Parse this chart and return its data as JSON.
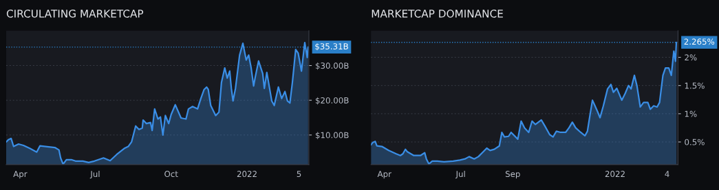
{
  "chart_data": [
    {
      "type": "area",
      "title": "CIRCULATING MARKETCAP",
      "color": "#3a8ee6",
      "grid": "y",
      "x": [
        "2021-03-15",
        "2021-03-18",
        "2021-03-21",
        "2021-03-24",
        "2021-03-30",
        "2021-04-05",
        "2021-04-13",
        "2021-04-21",
        "2021-04-25",
        "2021-05-02",
        "2021-05-13",
        "2021-05-18",
        "2021-05-20",
        "2021-05-23",
        "2021-05-27",
        "2021-06-02",
        "2021-06-07",
        "2021-06-16",
        "2021-06-23",
        "2021-06-30",
        "2021-07-11",
        "2021-07-19",
        "2021-07-27",
        "2021-08-05",
        "2021-08-10",
        "2021-08-14",
        "2021-08-19",
        "2021-08-23",
        "2021-08-27",
        "2021-08-28",
        "2021-09-01",
        "2021-09-06",
        "2021-09-08",
        "2021-09-11",
        "2021-09-15",
        "2021-09-18",
        "2021-09-21",
        "2021-09-24",
        "2021-09-28",
        "2021-10-01",
        "2021-10-06",
        "2021-10-13",
        "2021-10-19",
        "2021-10-22",
        "2021-10-27",
        "2021-11-02",
        "2021-11-06",
        "2021-11-10",
        "2021-11-13",
        "2021-11-15",
        "2021-11-18",
        "2021-11-24",
        "2021-11-28",
        "2021-12-01",
        "2021-12-05",
        "2021-12-08",
        "2021-12-11",
        "2021-12-13",
        "2021-12-15",
        "2021-12-18",
        "2021-12-23",
        "2021-12-27",
        "2021-12-31",
        "2022-01-03",
        "2022-01-06",
        "2022-01-09",
        "2022-01-11",
        "2022-01-15",
        "2022-01-20",
        "2022-01-22",
        "2022-01-25",
        "2022-01-31",
        "2022-02-03",
        "2022-02-08",
        "2022-02-12",
        "2022-02-16",
        "2022-02-19",
        "2022-02-22",
        "2022-02-25",
        "2022-03-01",
        "2022-03-04",
        "2022-03-08",
        "2022-03-12",
        "2022-03-15",
        "2022-03-16"
      ],
      "values": [
        8.0,
        8.7,
        9.0,
        6.7,
        7.4,
        7.0,
        6.1,
        5.1,
        6.9,
        6.7,
        6.4,
        5.7,
        3.4,
        1.6,
        2.9,
        2.9,
        2.5,
        2.5,
        2.1,
        2.5,
        3.4,
        2.6,
        4.4,
        6.1,
        6.7,
        8.0,
        12.6,
        11.6,
        12.0,
        14.3,
        13.3,
        13.6,
        11.3,
        17.5,
        14.6,
        15.2,
        10.0,
        15.6,
        13.3,
        15.9,
        18.7,
        14.9,
        14.6,
        17.5,
        18.2,
        17.5,
        20.5,
        23.1,
        23.8,
        23.1,
        18.5,
        15.6,
        16.6,
        25.1,
        29.3,
        26.4,
        28.4,
        23.4,
        19.8,
        23.4,
        33.0,
        36.4,
        31.6,
        33.0,
        29.3,
        24.1,
        26.7,
        31.3,
        27.7,
        23.4,
        28.0,
        19.8,
        18.5,
        23.8,
        20.5,
        22.5,
        19.8,
        19.2,
        25.1,
        34.6,
        33.6,
        28.4,
        36.6,
        32.3,
        35.31
      ],
      "xlim": [
        "2021-03-15",
        "2022-03-17"
      ],
      "xticks": [
        {
          "value": "2021-04-01",
          "label": "Apr"
        },
        {
          "value": "2021-07-01",
          "label": "Jul"
        },
        {
          "value": "2021-10-01",
          "label": "Oct"
        },
        {
          "value": "2022-01-01",
          "label": "2022"
        },
        {
          "value": "2022-03-05",
          "label": "5"
        }
      ],
      "ylim": [
        1.5,
        40
      ],
      "yticks": [
        {
          "value": 10,
          "label": "$10.00B"
        },
        {
          "value": 20,
          "label": "$20.00B"
        },
        {
          "value": 30,
          "label": "$30.00B"
        }
      ],
      "ref_lines": [
        {
          "axis": "y",
          "value": 35.31,
          "label": "$35.31B",
          "color": "#2a7fc8",
          "line_style": "dotted"
        }
      ]
    },
    {
      "type": "area",
      "title": "MARKETCAP DOMINANCE",
      "color": "#3a8ee6",
      "grid": "y",
      "x": [
        "2021-03-16",
        "2021-03-18",
        "2021-03-21",
        "2021-03-23",
        "2021-03-29",
        "2021-04-06",
        "2021-04-15",
        "2021-04-20",
        "2021-04-23",
        "2021-04-26",
        "2021-04-28",
        "2021-05-06",
        "2021-05-14",
        "2021-05-19",
        "2021-05-21",
        "2021-05-24",
        "2021-05-28",
        "2021-06-03",
        "2021-06-11",
        "2021-06-22",
        "2021-06-30",
        "2021-07-06",
        "2021-07-11",
        "2021-07-17",
        "2021-07-22",
        "2021-07-28",
        "2021-08-01",
        "2021-08-05",
        "2021-08-10",
        "2021-08-16",
        "2021-08-19",
        "2021-08-22",
        "2021-08-27",
        "2021-08-30",
        "2021-09-07",
        "2021-09-11",
        "2021-09-15",
        "2021-09-20",
        "2021-09-24",
        "2021-09-28",
        "2021-10-05",
        "2021-10-09",
        "2021-10-15",
        "2021-10-19",
        "2021-10-23",
        "2021-10-28",
        "2021-11-03",
        "2021-11-07",
        "2021-11-11",
        "2021-11-15",
        "2021-11-21",
        "2021-11-26",
        "2021-11-29",
        "2021-12-02",
        "2021-12-05",
        "2021-12-08",
        "2021-12-11",
        "2021-12-14",
        "2021-12-18",
        "2021-12-23",
        "2021-12-27",
        "2021-12-30",
        "2022-01-03",
        "2022-01-09",
        "2022-01-13",
        "2022-01-17",
        "2022-01-20",
        "2022-01-24",
        "2022-01-27",
        "2022-01-31",
        "2022-02-04",
        "2022-02-09",
        "2022-02-12",
        "2022-02-16",
        "2022-02-20",
        "2022-02-23",
        "2022-02-27",
        "2022-03-02",
        "2022-03-06",
        "2022-03-09",
        "2022-03-12",
        "2022-03-14",
        "2022-03-15"
      ],
      "values": [
        0.45,
        0.49,
        0.51,
        0.43,
        0.42,
        0.35,
        0.29,
        0.26,
        0.29,
        0.37,
        0.33,
        0.26,
        0.26,
        0.31,
        0.2,
        0.11,
        0.16,
        0.16,
        0.15,
        0.16,
        0.18,
        0.2,
        0.24,
        0.2,
        0.24,
        0.33,
        0.39,
        0.35,
        0.37,
        0.43,
        0.67,
        0.59,
        0.6,
        0.67,
        0.55,
        0.87,
        0.75,
        0.67,
        0.87,
        0.81,
        0.89,
        0.79,
        0.63,
        0.59,
        0.69,
        0.67,
        0.67,
        0.75,
        0.85,
        0.75,
        0.67,
        0.61,
        0.69,
        0.97,
        1.24,
        1.14,
        1.04,
        0.93,
        1.14,
        1.44,
        1.52,
        1.38,
        1.45,
        1.24,
        1.36,
        1.5,
        1.44,
        1.68,
        1.5,
        1.12,
        1.2,
        1.2,
        1.08,
        1.14,
        1.12,
        1.2,
        1.68,
        1.81,
        1.81,
        1.68,
        2.11,
        1.93,
        2.265
      ],
      "xlim": [
        "2021-03-16",
        "2022-03-17"
      ],
      "xticks": [
        {
          "value": "2021-04-01",
          "label": "Apr"
        },
        {
          "value": "2021-07-01",
          "label": "Jul"
        },
        {
          "value": "2021-09-01",
          "label": "Sep"
        },
        {
          "value": "2022-01-01",
          "label": "2022"
        },
        {
          "value": "2022-03-04",
          "label": "4"
        }
      ],
      "ylim": [
        0.1,
        2.47
      ],
      "yticks": [
        {
          "value": 0.5,
          "label": "0.5%"
        },
        {
          "value": 1,
          "label": "1%"
        },
        {
          "value": 1.5,
          "label": "1.5%"
        },
        {
          "value": 2,
          "label": "2%"
        }
      ],
      "ref_lines": [
        {
          "axis": "y",
          "value": 2.265,
          "label": "2.265%",
          "color": "#2a7fc8",
          "line_style": "dotted"
        }
      ]
    }
  ]
}
